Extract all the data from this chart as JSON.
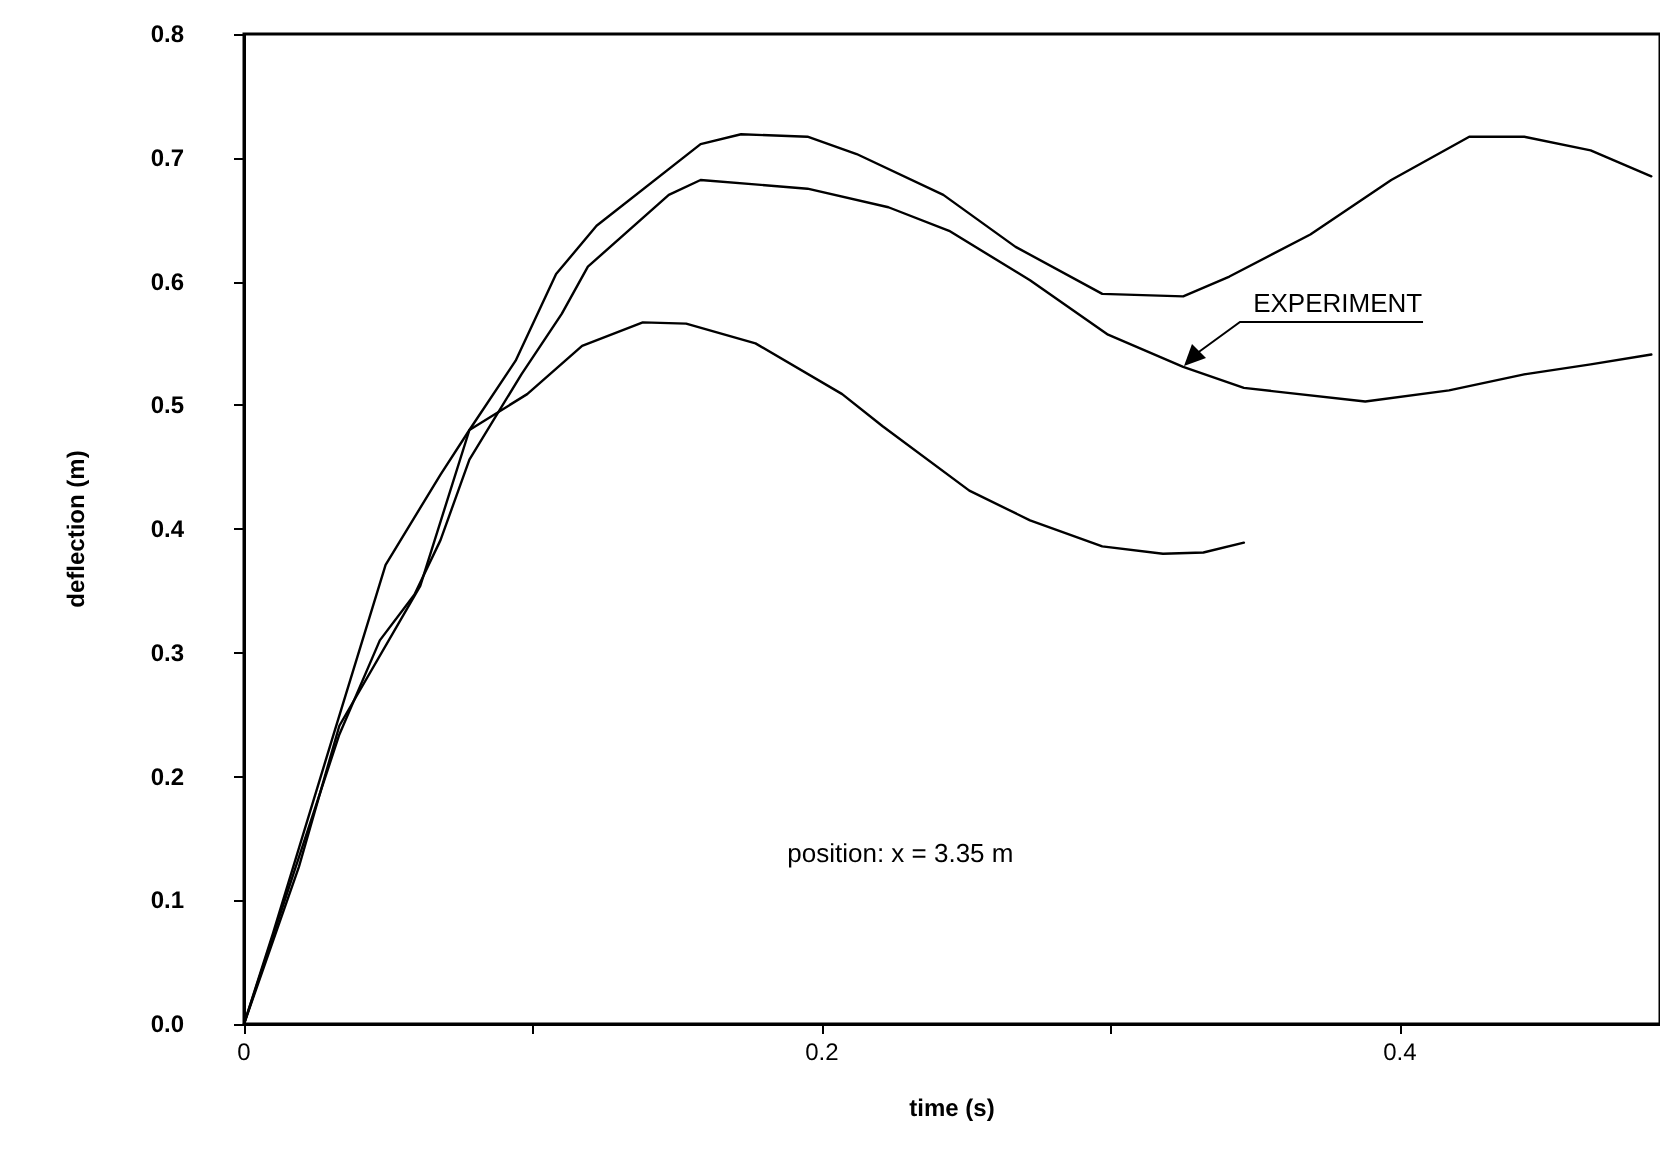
{
  "chart_data": {
    "type": "line",
    "xlabel": "time (s)",
    "ylabel": "deflection (m)",
    "xlim": [
      0,
      0.49
    ],
    "ylim": [
      0,
      0.8
    ],
    "xticks": [
      {
        "value": 0,
        "label": "0"
      },
      {
        "value": 0.1,
        "label": null
      },
      {
        "value": 0.2,
        "label": "0.2"
      },
      {
        "value": 0.3,
        "label": null
      },
      {
        "value": 0.4,
        "label": "0.4"
      }
    ],
    "yticks": [
      {
        "value": 0,
        "label": "0.0"
      },
      {
        "value": 0.1,
        "label": "0.1"
      },
      {
        "value": 0.2,
        "label": "0.2"
      },
      {
        "value": 0.3,
        "label": "0.3"
      },
      {
        "value": 0.4,
        "label": "0.4"
      },
      {
        "value": 0.5,
        "label": "0.5"
      },
      {
        "value": 0.6,
        "label": "0.6"
      },
      {
        "value": 0.7,
        "label": "0.7"
      },
      {
        "value": 0.8,
        "label": "0.8"
      }
    ],
    "grid": false,
    "legend": false,
    "marker": "none",
    "line_style": "solid",
    "series": [
      {
        "color": "#000000",
        "x": [
          0,
          0.019,
          0.033,
          0.061,
          0.078,
          0.094,
          0.108,
          0.122,
          0.158,
          0.172,
          0.195,
          0.212,
          0.242,
          0.267,
          0.297,
          0.325,
          0.341,
          0.369,
          0.397,
          0.424,
          0.443,
          0.466,
          0.487
        ],
        "values": [
          0,
          0.127,
          0.241,
          0.354,
          0.48,
          0.536,
          0.606,
          0.645,
          0.711,
          0.719,
          0.717,
          0.703,
          0.67,
          0.628,
          0.59,
          0.588,
          0.604,
          0.638,
          0.682,
          0.717,
          0.717,
          0.706,
          0.685
        ]
      },
      {
        "name": "EXPERIMENT",
        "color": "#000000",
        "x": [
          0,
          0.033,
          0.047,
          0.059,
          0.068,
          0.078,
          0.096,
          0.11,
          0.119,
          0.147,
          0.158,
          0.195,
          0.223,
          0.244,
          0.272,
          0.299,
          0.325,
          0.346,
          0.388,
          0.417,
          0.443,
          0.466,
          0.487
        ],
        "values": [
          0,
          0.234,
          0.31,
          0.347,
          0.391,
          0.456,
          0.525,
          0.574,
          0.612,
          0.67,
          0.682,
          0.675,
          0.66,
          0.641,
          0.601,
          0.557,
          0.531,
          0.514,
          0.503,
          0.512,
          0.525,
          0.533,
          0.541
        ]
      },
      {
        "color": "#000000",
        "x": [
          0,
          0.01,
          0.031,
          0.049,
          0.068,
          0.078,
          0.098,
          0.117,
          0.138,
          0.153,
          0.177,
          0.207,
          0.221,
          0.251,
          0.272,
          0.297,
          0.318,
          0.332,
          0.346
        ],
        "values": [
          0,
          0.073,
          0.234,
          0.371,
          0.444,
          0.48,
          0.509,
          0.548,
          0.567,
          0.566,
          0.55,
          0.509,
          0.483,
          0.431,
          0.407,
          0.386,
          0.38,
          0.381,
          0.389
        ]
      }
    ],
    "annotations": [
      "position:  x = 3.35 m"
    ]
  }
}
